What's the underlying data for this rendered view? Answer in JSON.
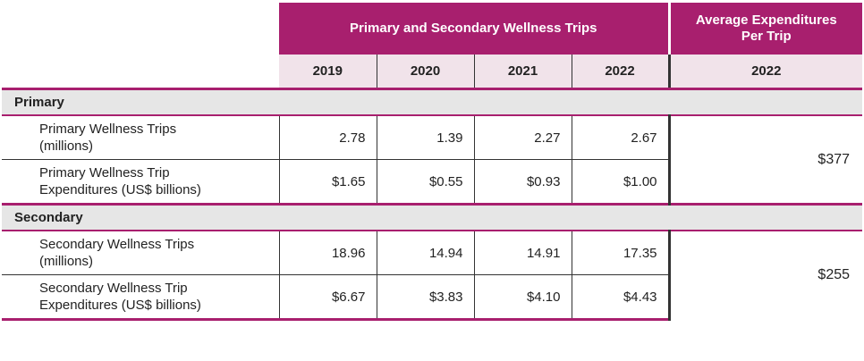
{
  "header": {
    "group_title": "Primary and Secondary Wellness Trips",
    "avg_title_line1": "Average Expenditures",
    "avg_title_line2": "Per Trip",
    "years": [
      "2019",
      "2020",
      "2021",
      "2022"
    ],
    "avg_year": "2022"
  },
  "sections": [
    {
      "title": "Primary",
      "rows": [
        {
          "label_line1": "Primary Wellness Trips",
          "label_line2": "(millions)",
          "values": [
            "2.78",
            "1.39",
            "2.27",
            "2.67"
          ]
        },
        {
          "label_line1": "Primary Wellness Trip",
          "label_line2": "Expenditures (US$ billions)",
          "values": [
            "$1.65",
            "$0.55",
            "$0.93",
            "$1.00"
          ]
        }
      ],
      "avg": "$377"
    },
    {
      "title": "Secondary",
      "rows": [
        {
          "label_line1": "Secondary Wellness Trips",
          "label_line2": "(millions)",
          "values": [
            "18.96",
            "14.94",
            "14.91",
            "17.35"
          ]
        },
        {
          "label_line1": "Secondary Wellness Trip",
          "label_line2": "Expenditures (US$ billions)",
          "values": [
            "$6.67",
            "$3.83",
            "$4.10",
            "$4.43"
          ]
        }
      ],
      "avg": "$255"
    }
  ],
  "colors": {
    "accent": "#a81f6e",
    "year_bg": "#f1e3ea",
    "group_bg": "#e6e6e6"
  }
}
